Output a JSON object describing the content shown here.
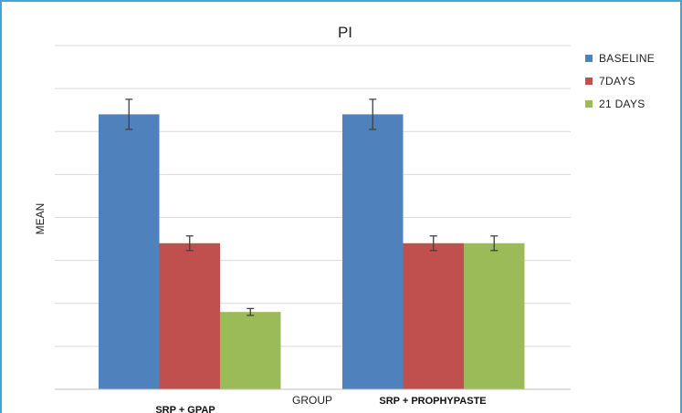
{
  "chart_data": {
    "type": "bar",
    "title": "PI",
    "xlabel": "GROUP",
    "ylabel": "MEAN",
    "categories": [
      "SRP + GPAP",
      "SRP + PROPHYPASTE"
    ],
    "series": [
      {
        "name": "BASELINE",
        "color": "#4f81bd",
        "values": [
          6.4,
          6.4
        ],
        "errors": [
          0.35,
          0.35
        ]
      },
      {
        "name": "7DAYS",
        "color": "#c0504d",
        "values": [
          3.4,
          3.4
        ],
        "errors": [
          0.17,
          0.17
        ]
      },
      {
        "name": "21 DAYS",
        "color": "#9bbb59",
        "values": [
          1.8,
          3.4
        ],
        "errors": [
          0.08,
          0.17
        ]
      }
    ],
    "ylim": [
      0,
      8
    ],
    "grid": true,
    "legend": "top-right"
  }
}
